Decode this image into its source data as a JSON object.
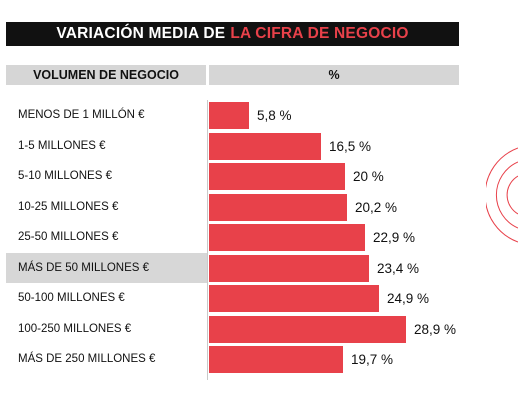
{
  "title": {
    "part1": "VARIACIÓN MEDIA DE",
    "part2": "LA CIFRA DE NEGOCIO"
  },
  "header": {
    "left": "VOLUMEN DE NEGOCIO",
    "right": "%"
  },
  "colors": {
    "bar": "#e8414a",
    "title_bg": "#111111",
    "title_accent": "#e8414a",
    "header_bg": "#d6d6d6",
    "highlight_row": "#d7d7d7"
  },
  "chart_data": {
    "type": "bar",
    "orientation": "horizontal",
    "title": "VARIACIÓN MEDIA DE LA CIFRA DE NEGOCIO",
    "xlabel": "%",
    "ylabel": "VOLUMEN DE NEGOCIO",
    "xlim": [
      0,
      28.9
    ],
    "categories": [
      "MENOS DE 1 MILLÓN €",
      "1-5 MILLONES €",
      "5-10 MILLONES €",
      "10-25 MILLONES €",
      "25-50 MILLONES €",
      "MÁS DE 50 MILLONES €",
      "50-100 MILLONES €",
      "100-250 MILLONES €",
      "MÁS DE 250 MILLONES €"
    ],
    "values": [
      5.8,
      16.5,
      20,
      20.2,
      22.9,
      23.4,
      24.9,
      28.9,
      19.7
    ],
    "value_labels": [
      "5,8 %",
      "16,5 %",
      "20 %",
      "20,2 %",
      "22,9 %",
      "23,4 %",
      "24,9 %",
      "28,9 %",
      "19,7 %"
    ],
    "highlighted_category": "MÁS DE 50 MILLONES €"
  }
}
